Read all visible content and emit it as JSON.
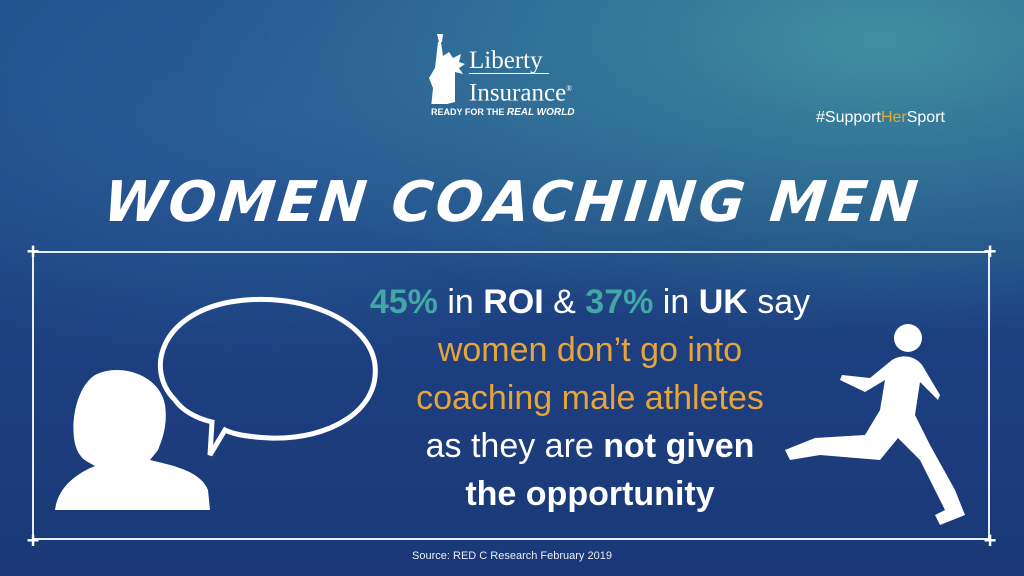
{
  "logo": {
    "line1": "Liberty",
    "line2": "Insurance",
    "registered": "®",
    "tagline_prefix": "READY FOR THE",
    "tagline_script": "REAL WORLD"
  },
  "hashtag": {
    "part1": "#Support",
    "part2": "Her",
    "part3": "Sport"
  },
  "title": "WOMEN COACHING MEN",
  "message": {
    "roi_pct": "45%",
    "t1": " in ",
    "roi": "ROI",
    "t2": " & ",
    "uk_pct": "37%",
    "t3": " in ",
    "uk": "UK",
    "t4": " say",
    "line2": "women don’t go into",
    "line3": "coaching male athletes",
    "line4a": "as they are ",
    "line4b": "not given",
    "line5": "the opportunity"
  },
  "source": "Source: RED C Research February 2019",
  "colors": {
    "accent_teal": "#43a7a5",
    "accent_orange": "#e6a43a",
    "background": "#1d3f80"
  },
  "icons": [
    "statue-of-liberty-logo-icon",
    "woman-silhouette-icon",
    "speech-bubble-icon",
    "runner-silhouette-icon"
  ]
}
